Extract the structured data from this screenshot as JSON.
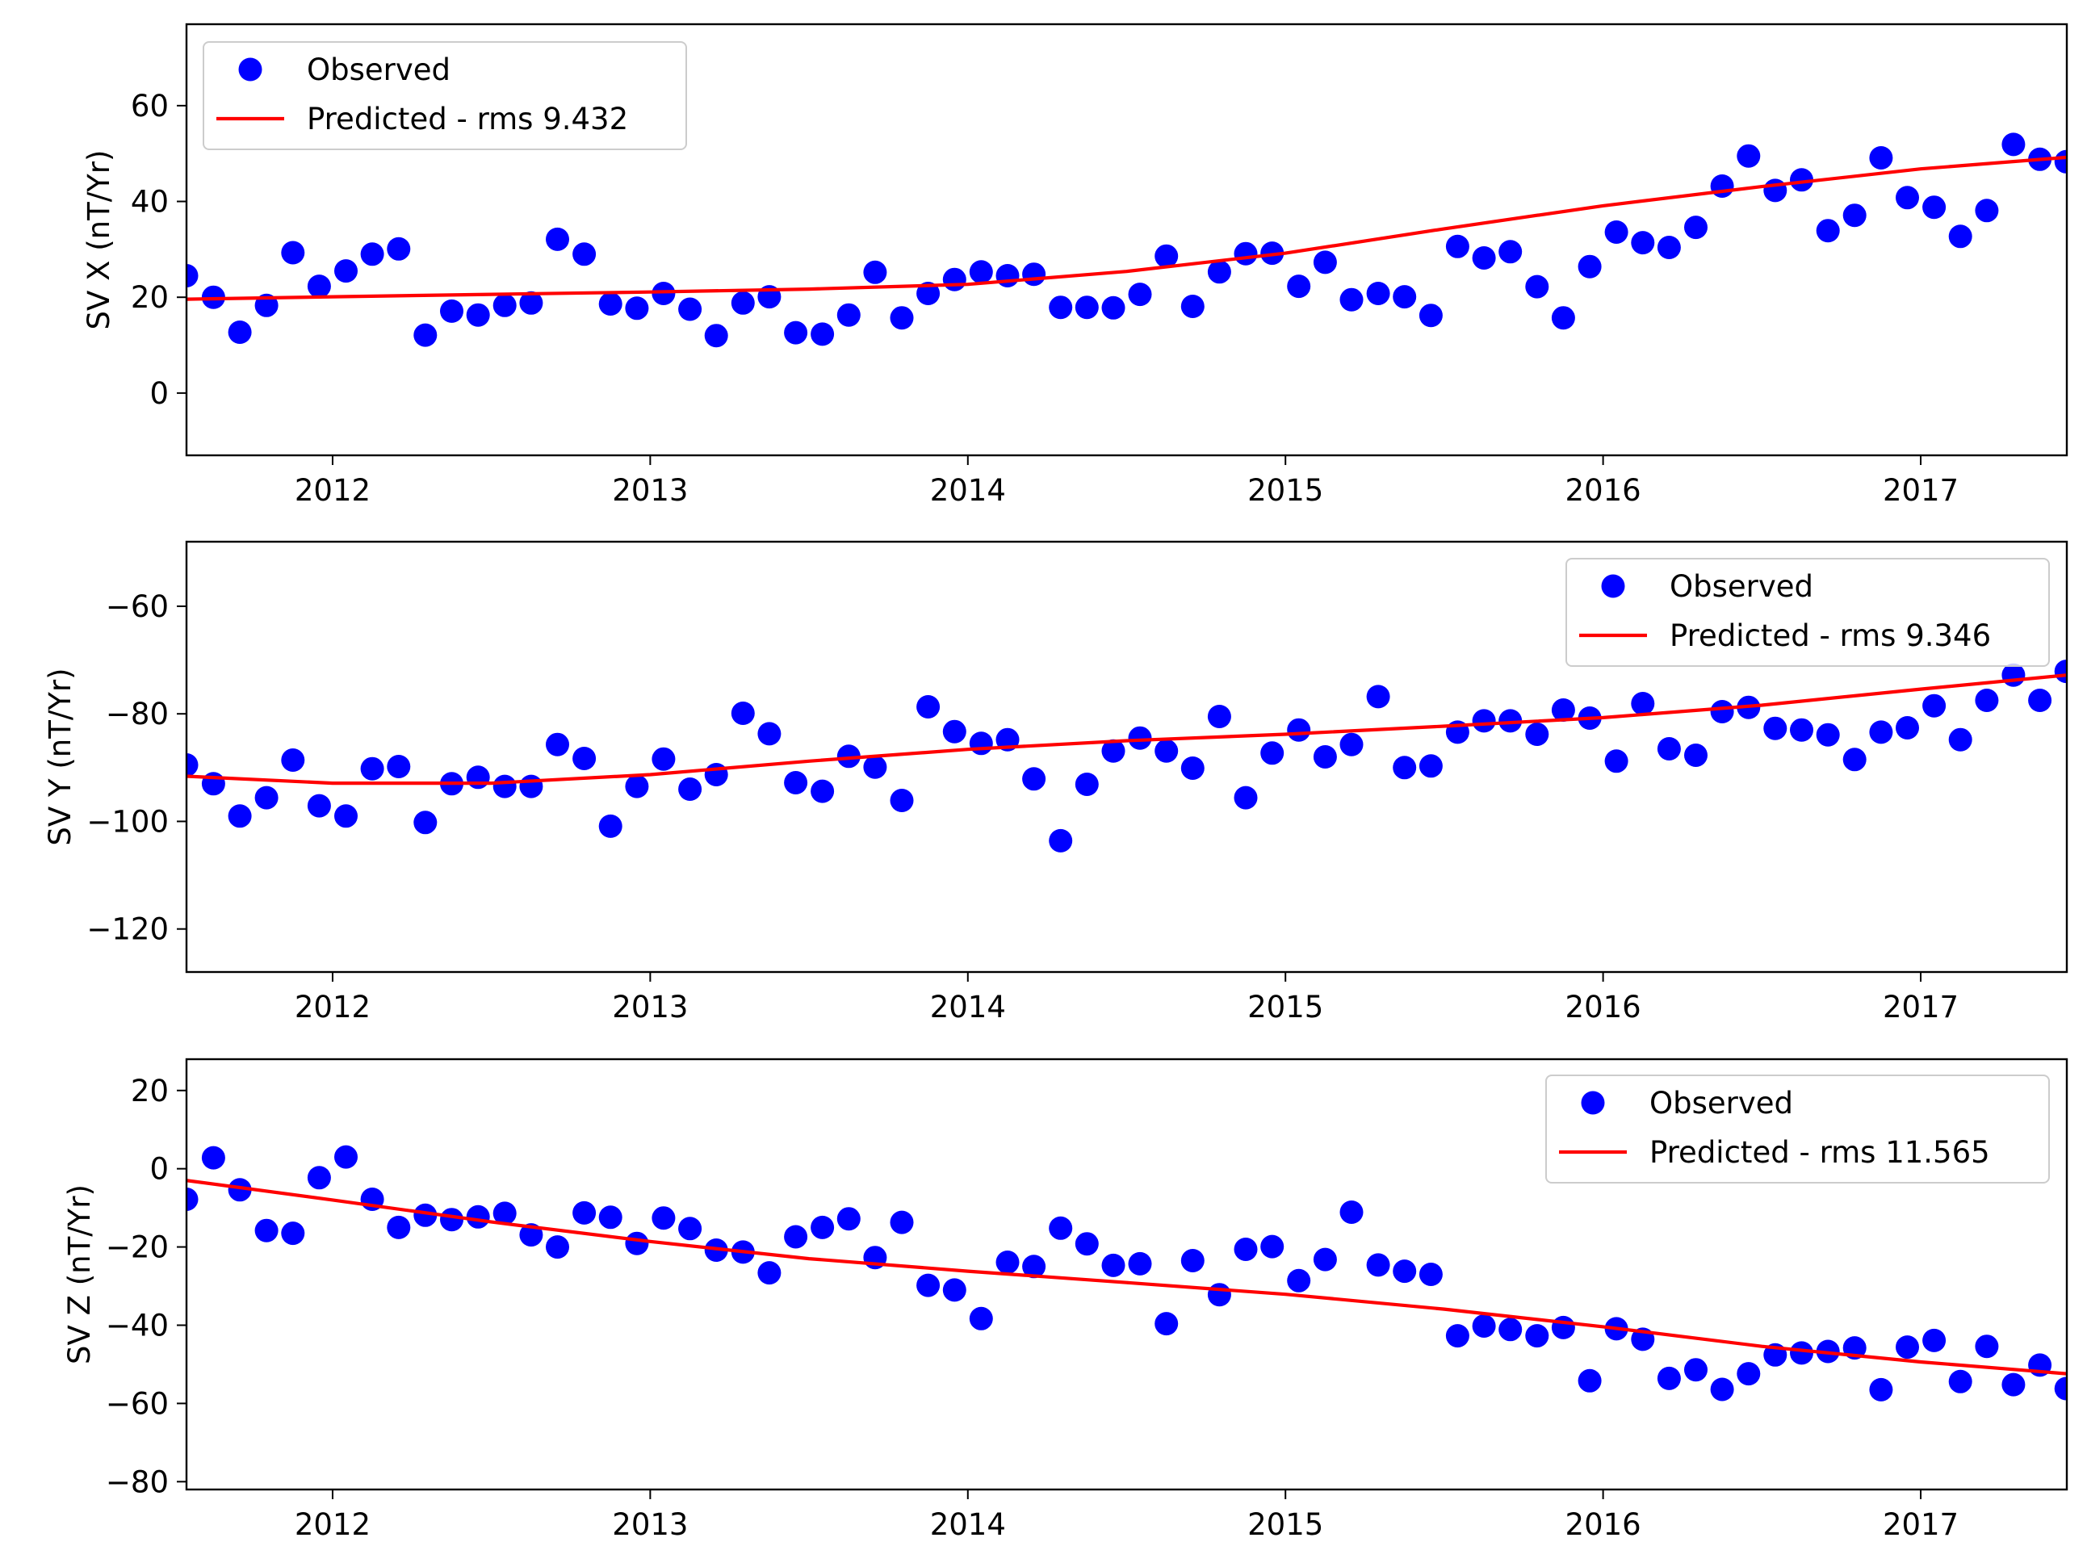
{
  "chart_data": [
    {
      "type": "scatter",
      "title": "",
      "xlabel": "",
      "ylabel": "SV X (nT/Yr)",
      "xlim": [
        2011.54,
        2017.46
      ],
      "ylim": [
        -13,
        77
      ],
      "xticks": [
        2012,
        2013,
        2014,
        2015,
        2016,
        2017
      ],
      "xtick_labels": [
        "2012",
        "2013",
        "2014",
        "2015",
        "2016",
        "2017"
      ],
      "yticks": [
        0,
        20,
        40,
        60
      ],
      "ytick_labels": [
        "0",
        "20",
        "40",
        "60"
      ],
      "grid": false,
      "legend_position": "top-left",
      "series": [
        {
          "name": "Observed",
          "kind": "points",
          "color": "#0000ff",
          "x": [
            2011.54,
            2011.625,
            2011.708,
            2011.792,
            2011.875,
            2011.958,
            2012.042,
            2012.125,
            2012.208,
            2012.292,
            2012.375,
            2012.458,
            2012.542,
            2012.625,
            2012.708,
            2012.792,
            2012.875,
            2012.958,
            2013.042,
            2013.125,
            2013.208,
            2013.292,
            2013.375,
            2013.458,
            2013.542,
            2013.625,
            2013.708,
            2013.792,
            2013.875,
            2013.958,
            2014.042,
            2014.125,
            2014.208,
            2014.292,
            2014.375,
            2014.458,
            2014.542,
            2014.625,
            2014.708,
            2014.792,
            2014.875,
            2014.958,
            2015.042,
            2015.125,
            2015.208,
            2015.292,
            2015.375,
            2015.458,
            2015.542,
            2015.625,
            2015.708,
            2015.792,
            2015.875,
            2015.958,
            2016.042,
            2016.125,
            2016.208,
            2016.292,
            2016.375,
            2016.458,
            2016.542,
            2016.625,
            2016.708,
            2016.792,
            2016.875,
            2016.958,
            2017.042,
            2017.125,
            2017.208,
            2017.292,
            2017.375,
            2017.458
          ],
          "y": [
            24.5,
            20,
            12.7,
            18.3,
            29.3,
            22.3,
            25.5,
            29,
            30.1,
            12.1,
            17.1,
            16.3,
            18.3,
            18.8,
            32.1,
            29,
            18.6,
            17.7,
            20.8,
            17.5,
            12,
            18.8,
            20.1,
            12.6,
            12.3,
            16.3,
            25.2,
            15.7,
            20.8,
            23.7,
            25.3,
            24.5,
            24.8,
            17.9,
            17.9,
            17.8,
            20.6,
            28.6,
            18.1,
            25.3,
            29.1,
            29.2,
            22.3,
            27.3,
            19.5,
            20.8,
            20.1,
            16.2,
            30.6,
            28.2,
            29.5,
            22.2,
            15.7,
            26.4,
            33.6,
            31.4,
            30.4,
            34.6,
            43.2,
            49.5,
            42.3,
            44.5,
            33.9,
            37.1,
            49.1,
            40.8,
            38.8,
            32.7,
            38.1,
            51.9,
            48.8,
            48.3
          ]
        },
        {
          "name": "Predicted - rms 9.432",
          "kind": "line",
          "color": "#ff0000",
          "x": [
            2011.54,
            2012,
            2012.5,
            2013,
            2013.5,
            2014,
            2014.5,
            2015,
            2015.5,
            2016,
            2016.5,
            2017,
            2017.46
          ],
          "y": [
            19.6,
            20.1,
            20.6,
            21.1,
            21.7,
            22.7,
            25.4,
            29.2,
            34.3,
            39.1,
            43.1,
            46.8,
            49.2
          ]
        }
      ]
    },
    {
      "type": "scatter",
      "title": "",
      "xlabel": "",
      "ylabel": "SV Y (nT/Yr)",
      "xlim": [
        2011.54,
        2017.46
      ],
      "ylim": [
        -128,
        -48
      ],
      "xticks": [
        2012,
        2013,
        2014,
        2015,
        2016,
        2017
      ],
      "xtick_labels": [
        "2012",
        "2013",
        "2014",
        "2015",
        "2016",
        "2017"
      ],
      "yticks": [
        -120,
        -100,
        -80,
        -60
      ],
      "ytick_labels": [
        "−120",
        "−100",
        "−80",
        "−60"
      ],
      "grid": false,
      "legend_position": "top-right",
      "series": [
        {
          "name": "Observed",
          "kind": "points",
          "color": "#0000ff",
          "x": [
            2011.54,
            2011.625,
            2011.708,
            2011.792,
            2011.875,
            2011.958,
            2012.042,
            2012.125,
            2012.208,
            2012.292,
            2012.375,
            2012.458,
            2012.542,
            2012.625,
            2012.708,
            2012.792,
            2012.875,
            2012.958,
            2013.042,
            2013.125,
            2013.208,
            2013.292,
            2013.375,
            2013.458,
            2013.542,
            2013.625,
            2013.708,
            2013.792,
            2013.875,
            2013.958,
            2014.042,
            2014.125,
            2014.208,
            2014.292,
            2014.375,
            2014.458,
            2014.542,
            2014.625,
            2014.708,
            2014.792,
            2014.875,
            2014.958,
            2015.042,
            2015.125,
            2015.208,
            2015.292,
            2015.375,
            2015.458,
            2015.542,
            2015.625,
            2015.708,
            2015.792,
            2015.875,
            2015.958,
            2016.042,
            2016.125,
            2016.208,
            2016.292,
            2016.375,
            2016.458,
            2016.542,
            2016.625,
            2016.708,
            2016.792,
            2016.875,
            2016.958,
            2017.042,
            2017.125,
            2017.208,
            2017.292,
            2017.375,
            2017.458
          ],
          "y": [
            -89.5,
            -93,
            -99,
            -95.6,
            -88.6,
            -97.1,
            -99,
            -90.2,
            -89.8,
            -100.2,
            -93,
            -91.8,
            -93.5,
            -93.5,
            -85.7,
            -88.3,
            -100.9,
            -93.5,
            -88.4,
            -94,
            -91.3,
            -79.9,
            -83.7,
            -92.8,
            -94.4,
            -87.9,
            -89.9,
            -96.1,
            -78.7,
            -83.3,
            -85.5,
            -84.8,
            -92.1,
            -103.6,
            -93.1,
            -86.9,
            -84.5,
            -86.9,
            -90.1,
            -80.5,
            -95.6,
            -87.3,
            -83,
            -88,
            -85.7,
            -76.8,
            -90,
            -89.7,
            -83.4,
            -81.3,
            -81.3,
            -83.8,
            -79.3,
            -80.8,
            -88.8,
            -78.1,
            -86.5,
            -87.7,
            -79.6,
            -78.8,
            -82.7,
            -83,
            -83.9,
            -88.5,
            -83.4,
            -82.6,
            -78.5,
            -84.8,
            -77.5,
            -72.8,
            -77.5,
            -72.1
          ]
        },
        {
          "name": "Predicted - rms 9.346",
          "kind": "line",
          "color": "#ff0000",
          "x": [
            2011.54,
            2012,
            2012.5,
            2013,
            2013.5,
            2014,
            2014.5,
            2015,
            2015.5,
            2016,
            2016.5,
            2017,
            2017.46
          ],
          "y": [
            -91.6,
            -92.9,
            -92.9,
            -91.3,
            -88.8,
            -86.6,
            -85,
            -83.8,
            -82.3,
            -80.7,
            -78.4,
            -75.4,
            -72.8
          ]
        }
      ]
    },
    {
      "type": "scatter",
      "title": "",
      "xlabel": "",
      "ylabel": "SV Z (nT/Yr)",
      "xlim": [
        2011.54,
        2017.46
      ],
      "ylim": [
        -82,
        28
      ],
      "xticks": [
        2012,
        2013,
        2014,
        2015,
        2016,
        2017
      ],
      "xtick_labels": [
        "2012",
        "2013",
        "2014",
        "2015",
        "2016",
        "2017"
      ],
      "yticks": [
        -80,
        -60,
        -40,
        -20,
        0,
        20
      ],
      "ytick_labels": [
        "−80",
        "−60",
        "−40",
        "−20",
        "0",
        "20"
      ],
      "grid": false,
      "legend_position": "top-right",
      "series": [
        {
          "name": "Observed",
          "kind": "points",
          "color": "#0000ff",
          "x": [
            2011.54,
            2011.625,
            2011.708,
            2011.792,
            2011.875,
            2011.958,
            2012.042,
            2012.125,
            2012.208,
            2012.292,
            2012.375,
            2012.458,
            2012.542,
            2012.625,
            2012.708,
            2012.792,
            2012.875,
            2012.958,
            2013.042,
            2013.125,
            2013.208,
            2013.292,
            2013.375,
            2013.458,
            2013.542,
            2013.625,
            2013.708,
            2013.792,
            2013.875,
            2013.958,
            2014.042,
            2014.125,
            2014.208,
            2014.292,
            2014.375,
            2014.458,
            2014.542,
            2014.625,
            2014.708,
            2014.792,
            2014.875,
            2014.958,
            2015.042,
            2015.125,
            2015.208,
            2015.292,
            2015.375,
            2015.458,
            2015.542,
            2015.625,
            2015.708,
            2015.792,
            2015.875,
            2015.958,
            2016.042,
            2016.125,
            2016.208,
            2016.292,
            2016.375,
            2016.458,
            2016.542,
            2016.625,
            2016.708,
            2016.792,
            2016.875,
            2016.958,
            2017.042,
            2017.125,
            2017.208,
            2017.292,
            2017.375,
            2017.458
          ],
          "y": [
            -7.8,
            2.8,
            -5.4,
            -15.8,
            -16.5,
            -2.3,
            3,
            -7.8,
            -15,
            -11.9,
            -13,
            -12.3,
            -11.4,
            -16.9,
            -20,
            -11.3,
            -12.4,
            -19.1,
            -12.6,
            -15.3,
            -20.8,
            -21.3,
            -26.6,
            -17.4,
            -15,
            -12.8,
            -22.7,
            -13.7,
            -29.8,
            -31,
            -38.3,
            -23.9,
            -25,
            -15.2,
            -19.2,
            -24.7,
            -24.3,
            -39.6,
            -23.5,
            -32.2,
            -20.6,
            -19.9,
            -28.6,
            -23.2,
            -11.1,
            -24.6,
            -26.2,
            -27,
            -42.7,
            -40.2,
            -41.1,
            -42.7,
            -40.6,
            -54.2,
            -40.9,
            -43.6,
            -53.6,
            -51.4,
            -56.4,
            -52.4,
            -47.6,
            -47.1,
            -46.7,
            -45.8,
            -56.5,
            -45.6,
            -43.9,
            -54.4,
            -45.4,
            -55.2,
            -50.2,
            -56.2
          ]
        },
        {
          "name": "Predicted - rms 11.565",
          "kind": "line",
          "color": "#ff0000",
          "x": [
            2011.54,
            2012,
            2012.5,
            2013,
            2013.5,
            2014,
            2014.5,
            2015,
            2015.5,
            2016,
            2016.5,
            2017,
            2017.46
          ],
          "y": [
            -3,
            -8,
            -13.6,
            -18.6,
            -23,
            -26.2,
            -29.1,
            -32.1,
            -35.9,
            -40.4,
            -45.4,
            -49.4,
            -52.4
          ]
        }
      ]
    }
  ]
}
